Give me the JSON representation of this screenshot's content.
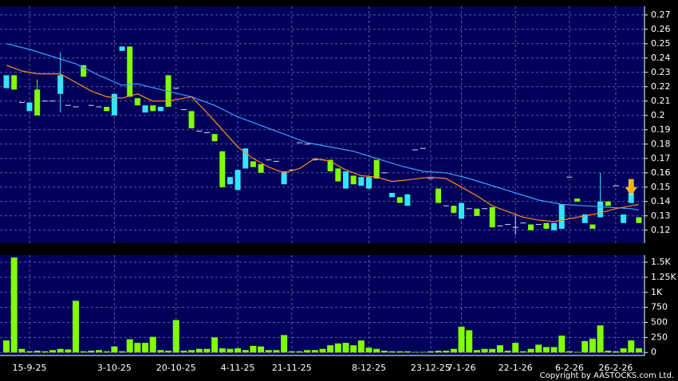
{
  "chart_data": {
    "type": "candlestick",
    "copyright": "Copyright by AASTOCKS.com Ltd.",
    "categories": [
      null,
      null,
      null,
      "15-9-25",
      null,
      null,
      null,
      null,
      null,
      null,
      null,
      null,
      null,
      null,
      "3-10-25",
      null,
      null,
      null,
      null,
      null,
      null,
      null,
      "20-10-25",
      null,
      null,
      null,
      null,
      null,
      null,
      null,
      "4-11-25",
      null,
      null,
      null,
      null,
      null,
      null,
      "21-11-25",
      null,
      null,
      null,
      null,
      null,
      null,
      null,
      null,
      null,
      "8-12-25",
      null,
      null,
      null,
      null,
      null,
      null,
      null,
      "23-12-25",
      null,
      null,
      null,
      "7-1-26",
      null,
      null,
      null,
      null,
      null,
      null,
      "22-1-26",
      null,
      null,
      null,
      null,
      null,
      null,
      "6-2-26",
      null,
      null,
      null,
      null,
      null,
      "26-2-26",
      null,
      null,
      null
    ],
    "open": [
      0.228,
      0.218,
      0.209,
      0.209,
      0.2,
      0.21,
      0.21,
      0.228,
      0.207,
      0.206,
      0.227,
      0.207,
      0.206,
      0.203,
      0.215,
      0.248,
      0.213,
      0.207,
      0.207,
      0.203,
      0.206,
      0.206,
      0.219,
      0.204,
      0.191,
      0.189,
      0.188,
      0.182,
      0.15,
      0.157,
      0.162,
      0.177,
      0.164,
      0.16,
      0.169,
      0.168,
      0.161,
      0.162,
      0.181,
      0.18,
      0.169,
      0.169,
      0.161,
      0.154,
      0.161,
      0.152,
      0.157,
      0.157,
      0.156,
      0.16,
      0.146,
      0.139,
      0.145,
      0.176,
      0.177,
      0.156,
      0.139,
      0.137,
      0.132,
      0.139,
      0.135,
      0.13,
      0.135,
      0.122,
      0.123,
      0.124,
      0.122,
      0.125,
      0.12,
      0.124,
      0.121,
      0.125,
      0.138,
      0.157,
      0.14,
      0.131,
      0.121,
      0.14,
      0.137,
      0.151,
      0.131,
      0.146,
      0.125
    ],
    "high": [
      0.228,
      0.228,
      0.209,
      0.209,
      0.225,
      0.21,
      0.21,
      0.244,
      0.207,
      0.206,
      0.235,
      0.207,
      0.206,
      0.206,
      0.215,
      0.248,
      0.248,
      0.212,
      0.207,
      0.207,
      0.206,
      0.228,
      0.219,
      0.204,
      0.203,
      0.189,
      0.188,
      0.187,
      0.175,
      0.157,
      0.162,
      0.177,
      0.168,
      0.166,
      0.169,
      0.168,
      0.161,
      0.162,
      0.181,
      0.18,
      0.169,
      0.169,
      0.169,
      0.163,
      0.161,
      0.158,
      0.157,
      0.157,
      0.169,
      0.16,
      0.146,
      0.143,
      0.145,
      0.176,
      0.177,
      0.156,
      0.149,
      0.137,
      0.137,
      0.139,
      0.135,
      0.135,
      0.135,
      0.136,
      0.123,
      0.124,
      0.131,
      0.125,
      0.124,
      0.124,
      0.125,
      0.125,
      0.138,
      0.157,
      0.142,
      0.131,
      0.124,
      0.16,
      0.14,
      0.151,
      0.131,
      0.146,
      0.129
    ],
    "low": [
      0.219,
      0.218,
      0.209,
      0.203,
      0.2,
      0.21,
      0.21,
      0.202,
      0.207,
      0.206,
      0.227,
      0.207,
      0.206,
      0.203,
      0.2,
      0.245,
      0.213,
      0.207,
      0.202,
      0.203,
      0.203,
      0.206,
      0.219,
      0.204,
      0.191,
      0.189,
      0.188,
      0.182,
      0.15,
      0.152,
      0.148,
      0.163,
      0.164,
      0.16,
      0.169,
      0.168,
      0.152,
      0.162,
      0.181,
      0.18,
      0.169,
      0.169,
      0.161,
      0.154,
      0.149,
      0.152,
      0.151,
      0.149,
      0.156,
      0.16,
      0.143,
      0.139,
      0.137,
      0.176,
      0.177,
      0.156,
      0.139,
      0.137,
      0.132,
      0.128,
      0.135,
      0.13,
      0.135,
      0.122,
      0.123,
      0.124,
      0.117,
      0.125,
      0.12,
      0.124,
      0.121,
      0.12,
      0.121,
      0.157,
      0.14,
      0.125,
      0.121,
      0.129,
      0.137,
      0.151,
      0.125,
      0.139,
      0.125
    ],
    "close": [
      0.219,
      0.228,
      0.209,
      0.203,
      0.218,
      0.21,
      0.21,
      0.215,
      0.207,
      0.206,
      0.235,
      0.207,
      0.206,
      0.206,
      0.2,
      0.245,
      0.248,
      0.212,
      0.202,
      0.207,
      0.203,
      0.228,
      0.219,
      0.204,
      0.203,
      0.189,
      0.188,
      0.187,
      0.175,
      0.152,
      0.148,
      0.163,
      0.168,
      0.166,
      0.169,
      0.168,
      0.152,
      0.162,
      0.181,
      0.18,
      0.169,
      0.169,
      0.169,
      0.163,
      0.149,
      0.158,
      0.151,
      0.149,
      0.169,
      0.16,
      0.143,
      0.143,
      0.137,
      0.176,
      0.177,
      0.156,
      0.149,
      0.137,
      0.137,
      0.128,
      0.135,
      0.135,
      0.135,
      0.136,
      0.123,
      0.124,
      0.122,
      0.125,
      0.124,
      0.124,
      0.125,
      0.12,
      0.121,
      0.157,
      0.142,
      0.125,
      0.124,
      0.129,
      0.14,
      0.151,
      0.125,
      0.139,
      0.129
    ],
    "volume": [
      200,
      1580,
      60,
      20,
      30,
      20,
      40,
      60,
      50,
      860,
      20,
      30,
      40,
      20,
      100,
      20,
      220,
      160,
      160,
      260,
      40,
      30,
      540,
      30,
      40,
      60,
      60,
      250,
      70,
      60,
      70,
      40,
      110,
      100,
      40,
      40,
      290,
      20,
      20,
      40,
      40,
      60,
      120,
      150,
      160,
      120,
      200,
      80,
      60,
      30,
      20,
      20,
      20,
      10,
      10,
      20,
      30,
      30,
      60,
      430,
      370,
      40,
      60,
      60,
      120,
      30,
      160,
      20,
      60,
      130,
      90,
      90,
      280,
      20,
      10,
      190,
      230,
      450,
      30,
      20,
      70,
      200,
      70
    ],
    "up_color": "#80ff00",
    "down_color": "#33e6ff",
    "volume_color": "#80ff00",
    "moving_averages": [
      {
        "color": "#3aa0ff",
        "x": [
          0,
          3,
          6,
          9,
          12,
          15,
          17,
          20,
          24,
          27,
          30,
          33,
          36,
          39,
          42,
          45,
          48,
          51,
          54,
          57,
          60,
          63,
          66,
          69,
          72,
          75,
          78,
          81,
          82
        ],
        "values": [
          0.25,
          0.246,
          0.241,
          0.236,
          0.228,
          0.221,
          0.222,
          0.218,
          0.213,
          0.207,
          0.199,
          0.193,
          0.187,
          0.181,
          0.178,
          0.175,
          0.17,
          0.165,
          0.161,
          0.16,
          0.156,
          0.151,
          0.146,
          0.141,
          0.138,
          0.137,
          0.136,
          0.135,
          0.134
        ]
      },
      {
        "color": "#ff8c1a",
        "x": [
          0,
          2,
          4,
          7,
          9,
          11,
          13,
          15,
          17,
          19,
          21,
          24,
          26,
          28,
          30,
          32,
          34,
          36,
          38,
          40,
          42,
          44,
          46,
          48,
          50,
          52,
          55,
          57,
          59,
          61,
          63,
          65,
          67,
          69,
          71,
          73,
          75,
          77,
          79,
          81,
          82
        ],
        "values": [
          0.235,
          0.231,
          0.229,
          0.229,
          0.223,
          0.217,
          0.213,
          0.212,
          0.215,
          0.21,
          0.21,
          0.213,
          0.202,
          0.19,
          0.178,
          0.17,
          0.164,
          0.16,
          0.163,
          0.17,
          0.168,
          0.162,
          0.158,
          0.157,
          0.154,
          0.155,
          0.157,
          0.156,
          0.15,
          0.144,
          0.137,
          0.133,
          0.129,
          0.127,
          0.126,
          0.128,
          0.13,
          0.132,
          0.135,
          0.137,
          0.138
        ]
      }
    ],
    "ylim": [
      0.111,
      0.276
    ],
    "yticks": [
      0.27,
      0.26,
      0.25,
      0.24,
      0.23,
      0.22,
      0.21,
      0.2,
      0.19,
      0.18,
      0.17,
      0.16,
      0.15,
      0.14,
      0.13,
      0.12
    ],
    "y2lim": [
      -50,
      1620
    ],
    "y2ticks": [
      {
        "value": 1500,
        "label": "1.5K"
      },
      {
        "value": 1250,
        "label": "1.25K"
      },
      {
        "value": 1000,
        "label": "1K"
      },
      750,
      500,
      250,
      0
    ],
    "grid": true
  }
}
